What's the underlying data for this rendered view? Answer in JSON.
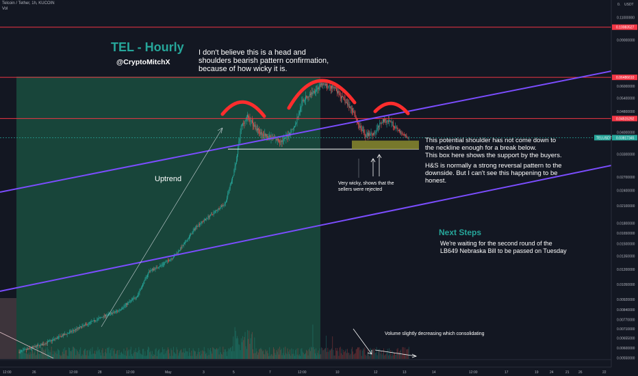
{
  "header": {
    "symbol_line": "Telcoin / Tether, 1h, KUCOIN",
    "indicator_line": "Vol"
  },
  "price_axis": {
    "currency": "USDT",
    "currency_marker": "0.",
    "ticks": [
      "0.11000000",
      "0.09000000",
      "0.06000000",
      "0.05400000",
      "0.04800000",
      "0.04000000",
      "0.03300000",
      "0.02700000",
      "0.02400000",
      "0.02100000",
      "0.01800000",
      "0.01650000",
      "0.01500000",
      "0.01350000",
      "0.01200000",
      "0.01050000",
      "0.00920000",
      "0.00840000",
      "0.00770000",
      "0.00710000",
      "0.00655000",
      "0.00600000",
      "0.00550000"
    ],
    "badges": [
      {
        "text": "0.10083527",
        "color": "#f23645"
      },
      {
        "text": "0.06486610",
        "color": "#f23645"
      },
      {
        "text": "0.04515292",
        "color": "#f23645"
      },
      {
        "text": "0.03817345",
        "color": "#26a69a"
      }
    ],
    "current_tag": "TELUSDT"
  },
  "time_axis": {
    "ticks": [
      "12:00",
      "26",
      "12:00",
      "28",
      "12:00",
      "May",
      "3",
      "5",
      "7",
      "12:00",
      "10",
      "12",
      "13",
      "14",
      "12:00",
      "17",
      "19",
      "21",
      "22",
      "24",
      "26"
    ]
  },
  "chart_data": {
    "type": "candlestick",
    "symbol": "Telcoin / Tether",
    "interval": "1h",
    "exchange": "KUCOIN",
    "y_scale": "log",
    "ylim": [
      0.0052,
      0.125
    ],
    "horizontal_levels": [
      0.10083527,
      0.0648661,
      0.04515292
    ],
    "last_price": 0.03817345,
    "neckline": 0.0345,
    "support_box": [
      0.0345,
      0.0372
    ],
    "price_path": [
      {
        "bar": 0,
        "price": 0.0058
      },
      {
        "bar": 30,
        "price": 0.0062
      },
      {
        "bar": 60,
        "price": 0.0068
      },
      {
        "bar": 90,
        "price": 0.0075
      },
      {
        "bar": 110,
        "price": 0.008
      },
      {
        "bar": 125,
        "price": 0.0083
      },
      {
        "bar": 150,
        "price": 0.0095
      },
      {
        "bar": 165,
        "price": 0.0118
      },
      {
        "bar": 180,
        "price": 0.0124
      },
      {
        "bar": 195,
        "price": 0.0133
      },
      {
        "bar": 210,
        "price": 0.015
      },
      {
        "bar": 225,
        "price": 0.0175
      },
      {
        "bar": 245,
        "price": 0.0195
      },
      {
        "bar": 262,
        "price": 0.0215
      },
      {
        "bar": 275,
        "price": 0.03
      },
      {
        "bar": 282,
        "price": 0.042
      },
      {
        "bar": 290,
        "price": 0.046
      },
      {
        "bar": 305,
        "price": 0.04
      },
      {
        "bar": 320,
        "price": 0.038
      },
      {
        "bar": 335,
        "price": 0.037
      },
      {
        "bar": 350,
        "price": 0.042
      },
      {
        "bar": 360,
        "price": 0.053
      },
      {
        "bar": 370,
        "price": 0.056
      },
      {
        "bar": 385,
        "price": 0.061
      },
      {
        "bar": 400,
        "price": 0.059
      },
      {
        "bar": 415,
        "price": 0.052
      },
      {
        "bar": 425,
        "price": 0.048
      },
      {
        "bar": 432,
        "price": 0.042
      },
      {
        "bar": 440,
        "price": 0.039
      },
      {
        "bar": 452,
        "price": 0.04
      },
      {
        "bar": 462,
        "price": 0.0445
      },
      {
        "bar": 472,
        "price": 0.044
      },
      {
        "bar": 482,
        "price": 0.0405
      },
      {
        "bar": 495,
        "price": 0.038
      }
    ],
    "volume_trend": "slightly decreasing"
  },
  "annotations": {
    "title": "TEL - Hourly",
    "author": "@CryptoMitchX",
    "head_shoulders_note": "I don't believe this is a head and\nshoulders bearish pattern confirmation,\nbecause of how wicky it is.",
    "uptrend_label": "Uptrend",
    "shoulder_note": "This potential shoulder has not come down to\nthe neckline enough for a break below.\nThis box here shows the support by the buyers.",
    "reversal_note": "H&S is normally a strong reversal pattern to the\ndownside. But I can't see this happening to be\nhonest.",
    "wicky_note": "Very wicky, shows that the\nsellers were rejected",
    "volume_note": "Volume slightly decreasing which consolidating",
    "next_steps_title": "Next Steps",
    "next_steps_body": "We're waiting for the second round of the\nLB649 Nebraska Bill to be passed on Tuesday"
  },
  "colors": {
    "background": "#131722",
    "up": "#26a69a",
    "down": "#ef5350",
    "level_line": "#f23645",
    "channel": "#7b4dff",
    "pattern_arc": "#ff2d2d",
    "teal_text": "#26a69a",
    "support_box": "#8a8a2e",
    "range_fill": "#1e6b4f"
  }
}
